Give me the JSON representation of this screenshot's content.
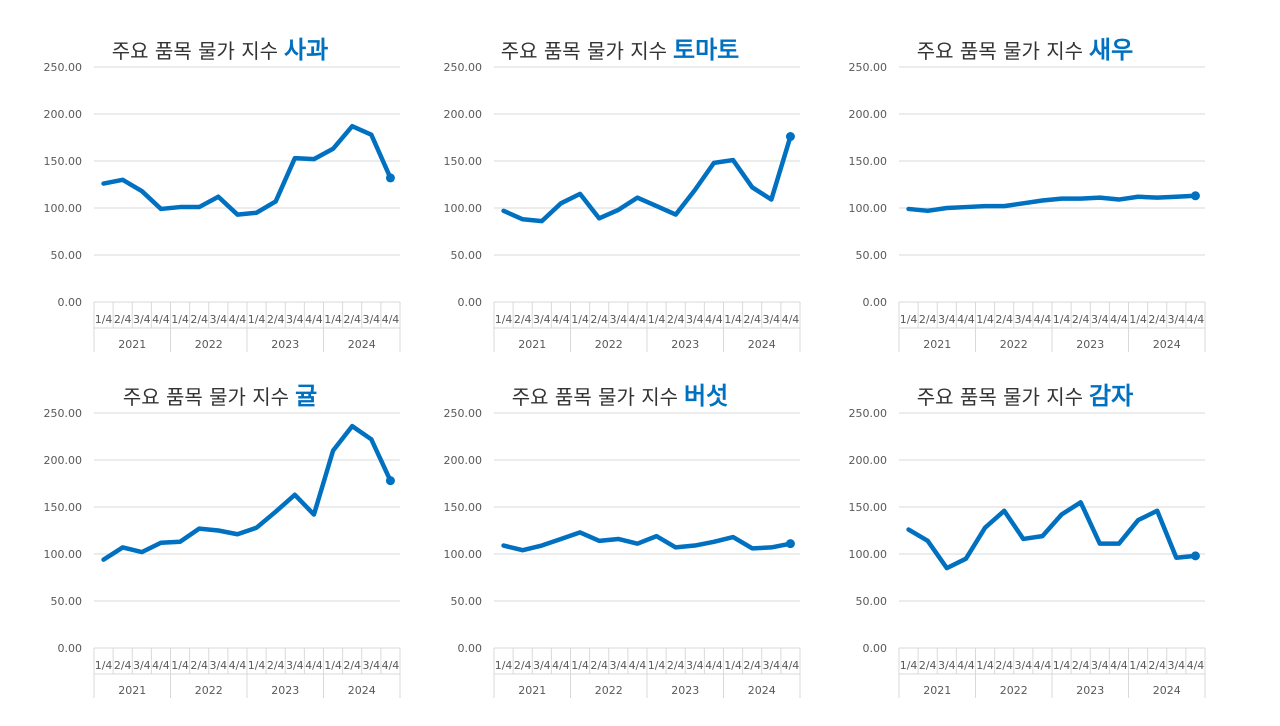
{
  "colors": {
    "line": "#0070C0",
    "grid": "#D9D9D9",
    "title_accent": "#0070C0"
  },
  "chart_data": [
    {
      "type": "line",
      "title_prefix": "주요 품목 물가 지수",
      "title_item": "사과",
      "ylim": [
        0,
        250
      ],
      "yticks": [
        "0.00",
        "50.00",
        "100.00",
        "150.00",
        "200.00",
        "250.00"
      ],
      "quarter_labels": [
        "1/4",
        "2/4",
        "3/4",
        "4/4"
      ],
      "years": [
        "2021",
        "2022",
        "2023",
        "2024"
      ],
      "values": [
        126,
        130,
        118,
        99,
        101,
        101,
        112,
        93,
        95,
        107,
        153,
        152,
        163,
        187,
        178,
        132
      ]
    },
    {
      "type": "line",
      "title_prefix": "주요 품목 물가 지수",
      "title_item": "토마토",
      "ylim": [
        0,
        250
      ],
      "yticks": [
        "0.00",
        "50.00",
        "100.00",
        "150.00",
        "200.00",
        "250.00"
      ],
      "quarter_labels": [
        "1/4",
        "2/4",
        "3/4",
        "4/4"
      ],
      "years": [
        "2021",
        "2022",
        "2023",
        "2024"
      ],
      "values": [
        97,
        88,
        86,
        105,
        115,
        89,
        98,
        111,
        102,
        93,
        119,
        148,
        151,
        122,
        109,
        176
      ]
    },
    {
      "type": "line",
      "title_prefix": "주요 품목 물가 지수",
      "title_item": "새우",
      "ylim": [
        0,
        250
      ],
      "yticks": [
        "0.00",
        "50.00",
        "100.00",
        "150.00",
        "200.00",
        "250.00"
      ],
      "quarter_labels": [
        "1/4",
        "2/4",
        "3/4",
        "4/4"
      ],
      "years": [
        "2021",
        "2022",
        "2023",
        "2024"
      ],
      "values": [
        99,
        97,
        100,
        101,
        102,
        102,
        105,
        108,
        110,
        110,
        111,
        109,
        112,
        111,
        112,
        113
      ]
    },
    {
      "type": "line",
      "title_prefix": "주요 품목 물가 지수",
      "title_item": "귤",
      "ylim": [
        0,
        250
      ],
      "yticks": [
        "0.00",
        "50.00",
        "100.00",
        "150.00",
        "200.00",
        "250.00"
      ],
      "quarter_labels": [
        "1/4",
        "2/4",
        "3/4",
        "4/4"
      ],
      "years": [
        "2021",
        "2022",
        "2023",
        "2024"
      ],
      "values": [
        94,
        107,
        102,
        112,
        113,
        127,
        125,
        121,
        128,
        145,
        163,
        142,
        210,
        236,
        222,
        178
      ]
    },
    {
      "type": "line",
      "title_prefix": "주요 품목 물가 지수",
      "title_item": "버섯",
      "ylim": [
        0,
        250
      ],
      "yticks": [
        "0.00",
        "50.00",
        "100.00",
        "150.00",
        "200.00",
        "250.00"
      ],
      "quarter_labels": [
        "1/4",
        "2/4",
        "3/4",
        "4/4"
      ],
      "years": [
        "2021",
        "2022",
        "2023",
        "2024"
      ],
      "values": [
        109,
        104,
        109,
        116,
        123,
        114,
        116,
        111,
        119,
        107,
        109,
        113,
        118,
        106,
        107,
        111
      ]
    },
    {
      "type": "line",
      "title_prefix": "주요 품목 물가 지수",
      "title_item": "감자",
      "ylim": [
        0,
        250
      ],
      "yticks": [
        "0.00",
        "50.00",
        "100.00",
        "150.00",
        "200.00",
        "250.00"
      ],
      "quarter_labels": [
        "1/4",
        "2/4",
        "3/4",
        "4/4"
      ],
      "years": [
        "2021",
        "2022",
        "2023",
        "2024"
      ],
      "values": [
        126,
        114,
        85,
        95,
        128,
        146,
        116,
        119,
        142,
        155,
        111,
        111,
        136,
        146,
        96,
        98
      ]
    }
  ]
}
